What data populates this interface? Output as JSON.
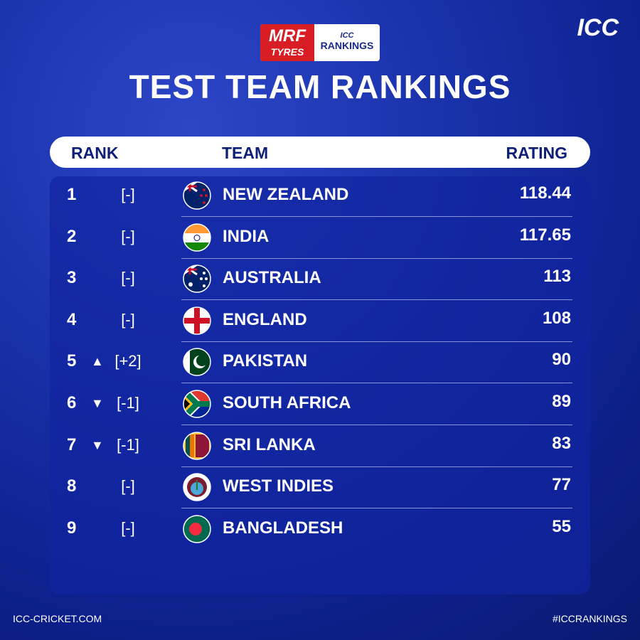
{
  "sponsor": {
    "brand": "MRF",
    "sub": "TYRES",
    "badge_top": "ICC",
    "badge_main": "RANKINGS"
  },
  "logo": "ICC",
  "title": "TEST TEAM RANKINGS",
  "columns": {
    "rank": "RANK",
    "team": "TEAM",
    "rating": "RATING"
  },
  "rows": [
    {
      "rank": 1,
      "change": "[-]",
      "team": "NEW ZEALAND",
      "rating": 118.44
    },
    {
      "rank": 2,
      "change": "[-]",
      "team": "INDIA",
      "rating": 117.65
    },
    {
      "rank": 3,
      "change": "[-]",
      "team": "AUSTRALIA",
      "rating": 113
    },
    {
      "rank": 4,
      "change": "[-]",
      "team": "ENGLAND",
      "rating": 108
    },
    {
      "rank": 5,
      "change": "[+2]",
      "team": "PAKISTAN",
      "rating": 90
    },
    {
      "rank": 6,
      "change": "[-1]",
      "team": "SOUTH AFRICA",
      "rating": 89
    },
    {
      "rank": 7,
      "change": "[-1]",
      "team": "SRI LANKA",
      "rating": 83
    },
    {
      "rank": 8,
      "change": "[-]",
      "team": "WEST INDIES",
      "rating": 77
    },
    {
      "rank": 9,
      "change": "[-]",
      "team": "BANGLADESH",
      "rating": 55
    }
  ],
  "footer": {
    "left": "ICC-CRICKET.COM",
    "right": "#ICCRANKINGS"
  }
}
